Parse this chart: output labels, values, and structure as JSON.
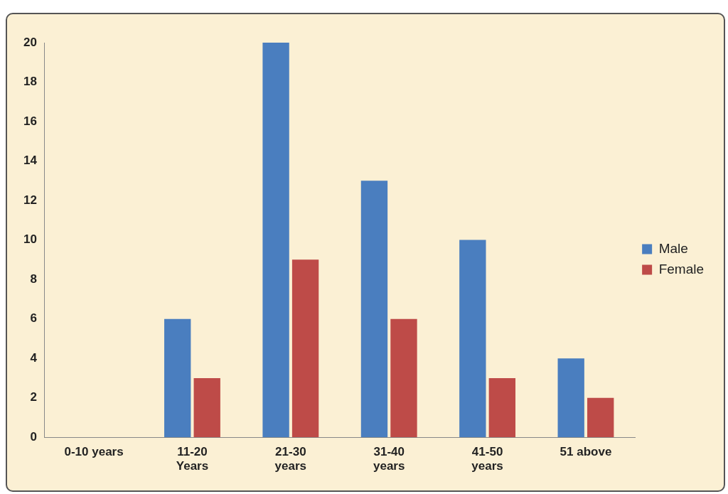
{
  "chart_data": {
    "type": "bar",
    "categories": [
      "0-10 years",
      "11-20\nYears",
      "21-30\nyears",
      "31-40\nyears",
      "41-50\nyears",
      "51 above"
    ],
    "series": [
      {
        "name": "Male",
        "color": "#4a7ebf",
        "values": [
          0,
          6,
          20,
          13,
          10,
          4
        ]
      },
      {
        "name": "Female",
        "color": "#be4b48",
        "values": [
          0,
          3,
          9,
          6,
          3,
          2
        ]
      }
    ],
    "ylim": [
      0,
      20
    ],
    "yticks": [
      0,
      2,
      4,
      6,
      8,
      10,
      12,
      14,
      16,
      18,
      20
    ],
    "grid": false,
    "legend": "right"
  }
}
